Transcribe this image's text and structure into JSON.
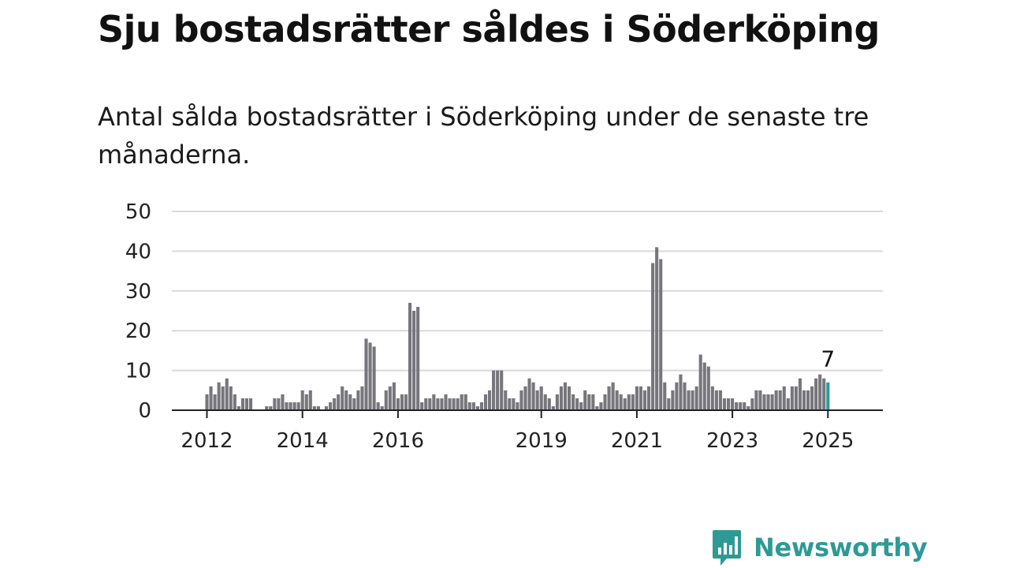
{
  "title": "Sju bostadsrätter såldes i Söderköping",
  "subtitle": "Antal sålda bostadsrätter i Söderköping under de senaste tre månaderna.",
  "brand": {
    "name": "Newsworthy",
    "icon": "newsworthy-logo-icon",
    "color": "#2e9a95"
  },
  "chart_data": {
    "type": "bar",
    "ylim": [
      0,
      50
    ],
    "yticks": [
      0,
      10,
      20,
      30,
      40,
      50
    ],
    "xticks": [
      {
        "label": "2012",
        "index": 0
      },
      {
        "label": "2014",
        "index": 24
      },
      {
        "label": "2016",
        "index": 48
      },
      {
        "label": "2019",
        "index": 84
      },
      {
        "label": "2021",
        "index": 108
      },
      {
        "label": "2023",
        "index": 132
      },
      {
        "label": "2025",
        "index": 156
      }
    ],
    "highlight": {
      "index": 156,
      "label": "7",
      "color": "#2a9d95"
    },
    "bar_color": "#76767c",
    "grid": true,
    "values": [
      4,
      6,
      4,
      7,
      6,
      8,
      6,
      4,
      1,
      3,
      3,
      3,
      0,
      0,
      0,
      1,
      1,
      3,
      3,
      4,
      2,
      2,
      2,
      2,
      5,
      4,
      5,
      1,
      1,
      0,
      1,
      2,
      3,
      4,
      6,
      5,
      4,
      3,
      5,
      6,
      18,
      17,
      16,
      2,
      1,
      5,
      6,
      7,
      3,
      4,
      4,
      27,
      25,
      26,
      2,
      3,
      3,
      4,
      3,
      3,
      4,
      3,
      3,
      3,
      4,
      4,
      2,
      2,
      1,
      2,
      4,
      5,
      10,
      10,
      10,
      5,
      3,
      3,
      2,
      5,
      6,
      8,
      7,
      5,
      6,
      4,
      3,
      1,
      4,
      6,
      7,
      6,
      4,
      3,
      2,
      5,
      4,
      4,
      1,
      2,
      4,
      6,
      7,
      5,
      4,
      3,
      4,
      4,
      6,
      6,
      5,
      6,
      37,
      41,
      38,
      7,
      3,
      5,
      7,
      9,
      7,
      5,
      5,
      6,
      14,
      12,
      11,
      6,
      5,
      5,
      3,
      3,
      3,
      2,
      2,
      2,
      1,
      3,
      5,
      5,
      4,
      4,
      4,
      5,
      5,
      6,
      3,
      6,
      6,
      8,
      5,
      5,
      6,
      8,
      9,
      8,
      7
    ]
  }
}
